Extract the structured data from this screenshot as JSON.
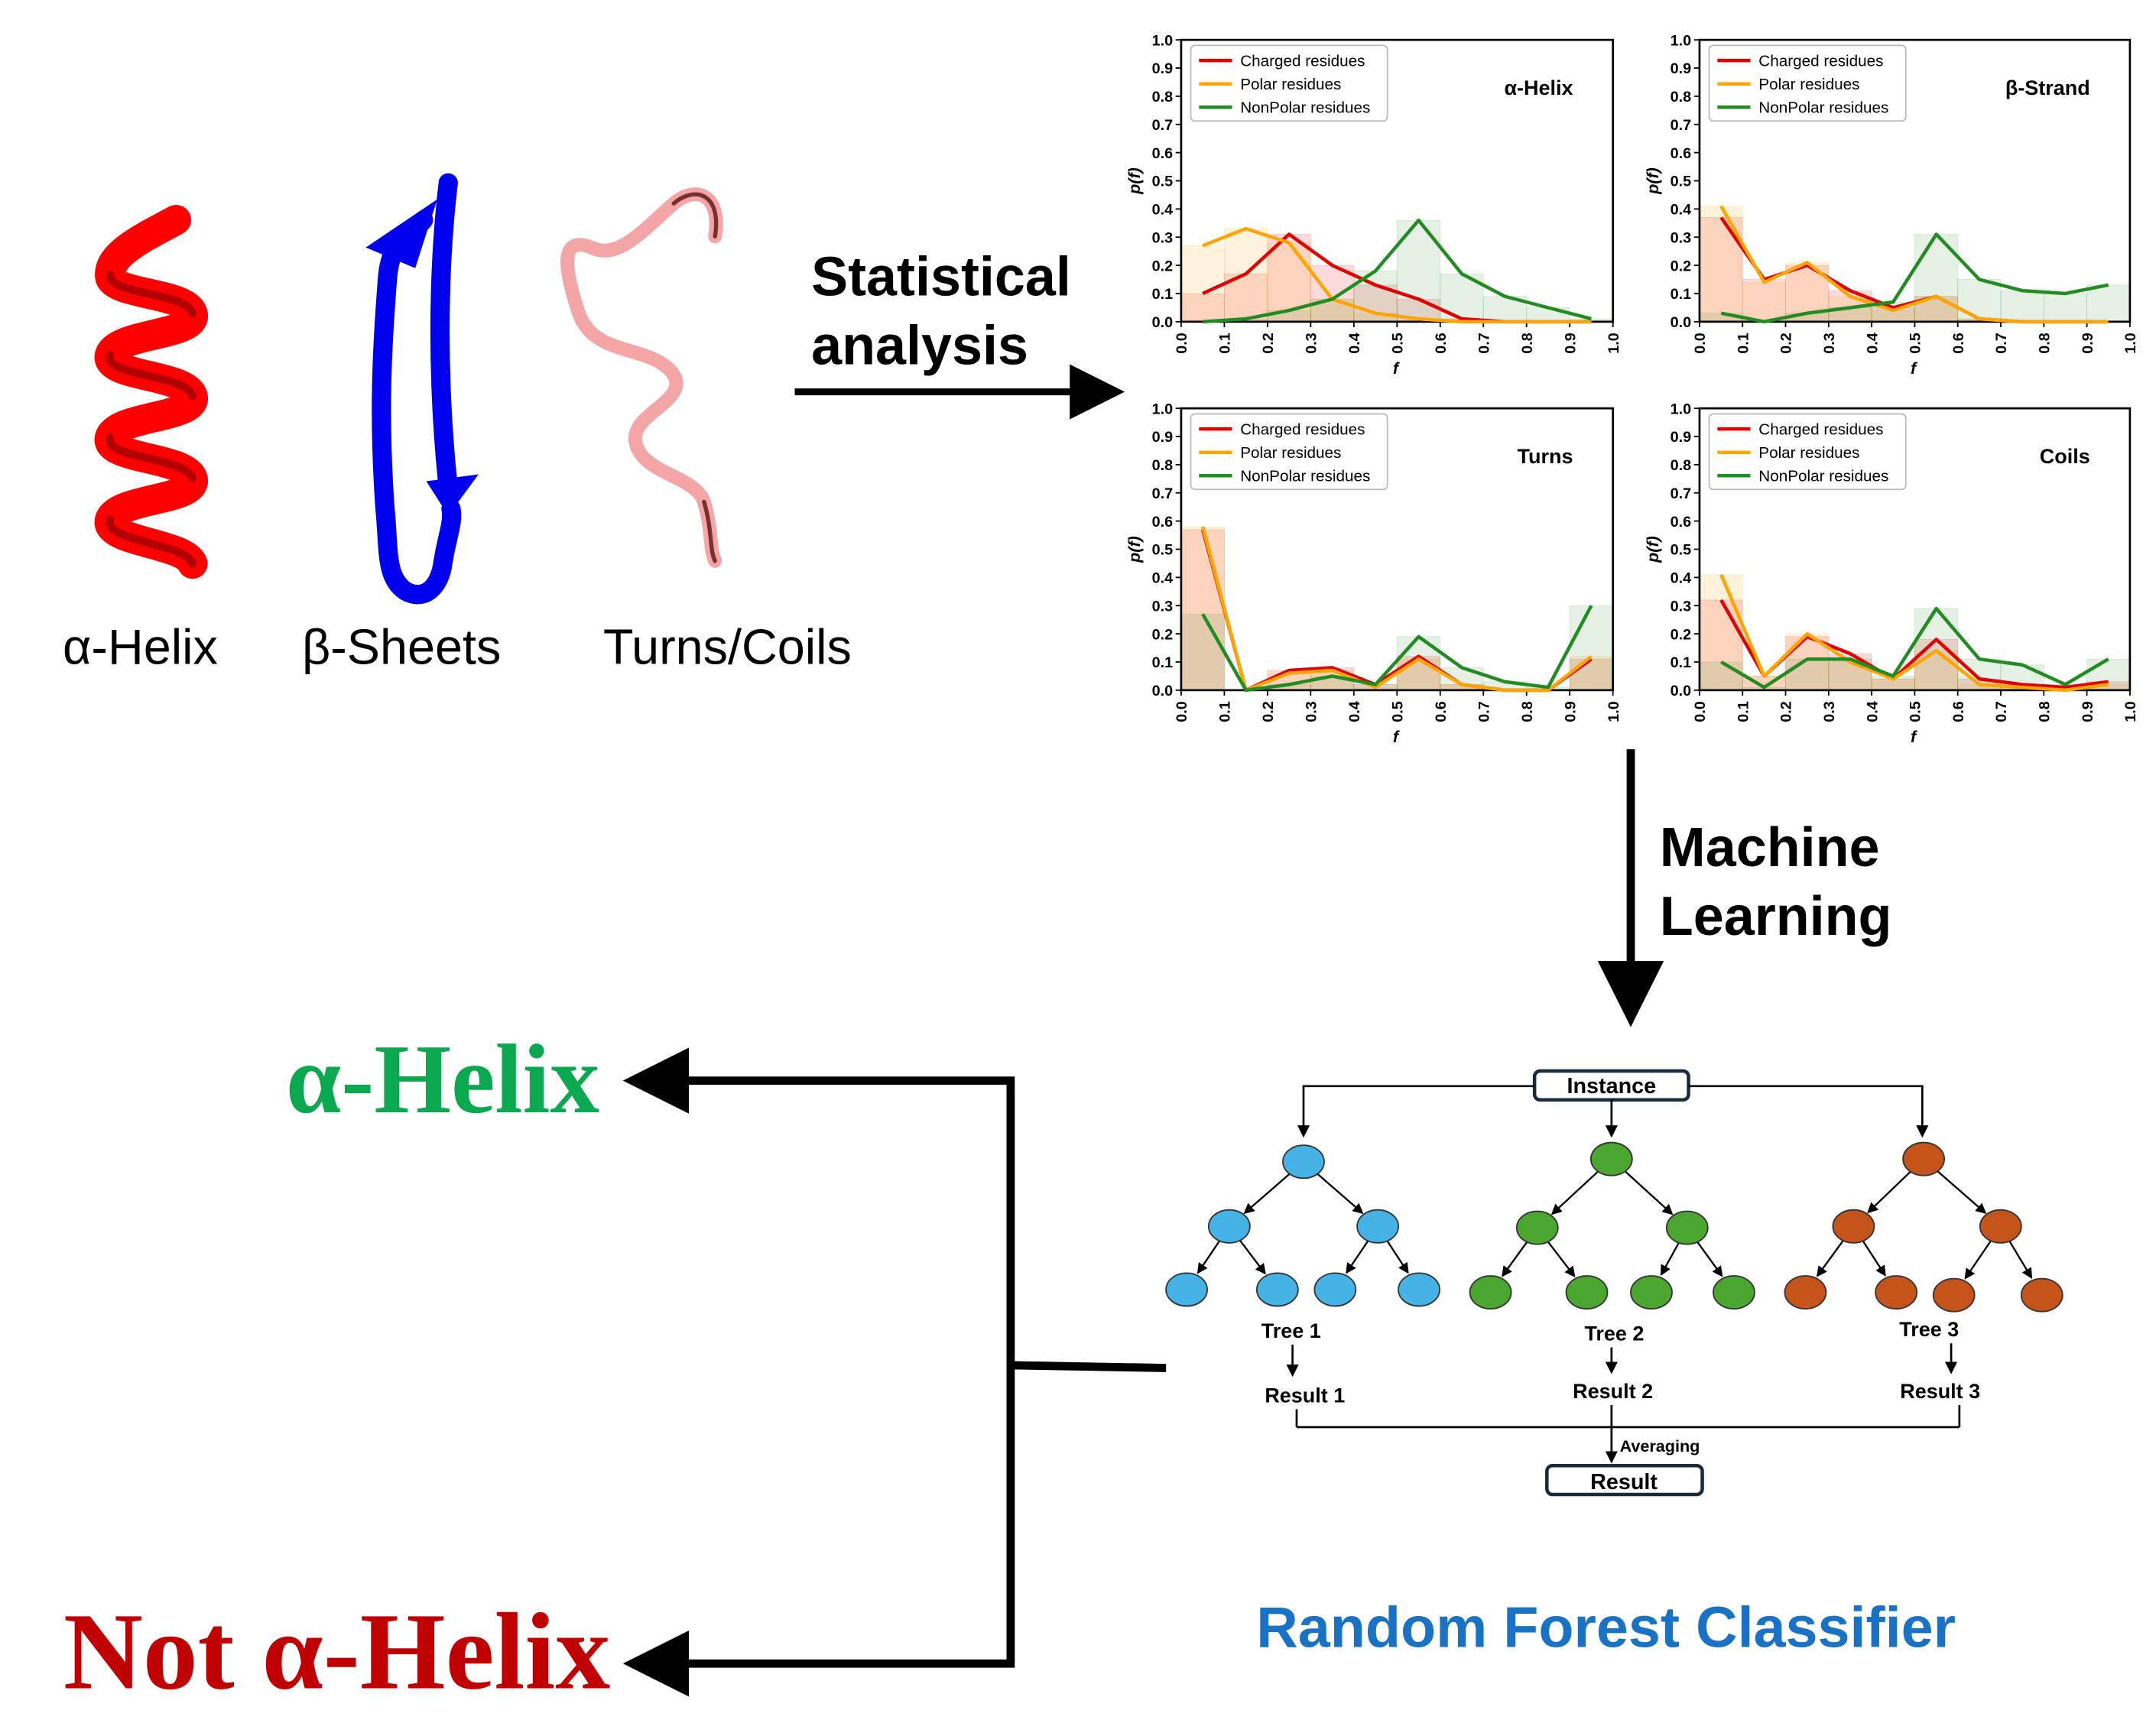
{
  "structures": {
    "helix_label": "α-Helix",
    "sheet_label": "β-Sheets",
    "coil_label": "Turns/Coils",
    "colors": {
      "helix": "#ff0000",
      "sheet": "#0000ee",
      "coil": "#f4a6a6"
    }
  },
  "arrows": {
    "stat_line1": "Statistical",
    "stat_line2": "analysis",
    "ml_line1": "Machine",
    "ml_line2": "Learning"
  },
  "outputs": {
    "alpha": "α-Helix",
    "not_alpha": "Not α-Helix",
    "alpha_color": "#0aa84f",
    "not_alpha_color": "#c00000"
  },
  "forest": {
    "instance": "Instance",
    "trees": [
      "Tree 1",
      "Tree 2",
      "Tree 3"
    ],
    "results": [
      "Result 1",
      "Result 2",
      "Result 3"
    ],
    "averaging": "Averaging",
    "final": "Result",
    "caption": "Random Forest Classifier",
    "caption_color": "#1a72c4",
    "tree_colors": [
      "#45b3e6",
      "#4aa62f",
      "#c5541a"
    ]
  },
  "legend": [
    "Charged residues",
    "Polar residues",
    "NonPolar residues"
  ],
  "series_colors": [
    "#e00000",
    "#ffa500",
    "#228b22"
  ],
  "chart_data": [
    {
      "type": "line",
      "title": "α-Helix",
      "xlabel": "f",
      "ylabel": "p(f)",
      "xlim": [
        0,
        1
      ],
      "ylim": [
        0,
        1
      ],
      "x": [
        0.05,
        0.15,
        0.25,
        0.35,
        0.45,
        0.55,
        0.65,
        0.75,
        0.85,
        0.95
      ],
      "series": [
        {
          "name": "Charged residues",
          "values": [
            0.1,
            0.17,
            0.31,
            0.2,
            0.13,
            0.08,
            0.01,
            0.0,
            0.0,
            0.0
          ]
        },
        {
          "name": "Polar residues",
          "values": [
            0.27,
            0.33,
            0.28,
            0.08,
            0.03,
            0.01,
            0.0,
            0.0,
            0.0,
            0.0
          ]
        },
        {
          "name": "NonPolar residues",
          "values": [
            0.0,
            0.01,
            0.04,
            0.08,
            0.18,
            0.36,
            0.17,
            0.09,
            0.05,
            0.01
          ]
        }
      ]
    },
    {
      "type": "line",
      "title": "β-Strand",
      "xlabel": "f",
      "ylabel": "p(f)",
      "xlim": [
        0,
        1
      ],
      "ylim": [
        0,
        1
      ],
      "x": [
        0.05,
        0.15,
        0.25,
        0.35,
        0.45,
        0.55,
        0.65,
        0.75,
        0.85,
        0.95
      ],
      "series": [
        {
          "name": "Charged residues",
          "values": [
            0.37,
            0.15,
            0.2,
            0.11,
            0.05,
            0.09,
            0.01,
            0.0,
            0.0,
            0.0
          ]
        },
        {
          "name": "Polar residues",
          "values": [
            0.41,
            0.14,
            0.21,
            0.09,
            0.04,
            0.09,
            0.01,
            0.0,
            0.0,
            0.0
          ]
        },
        {
          "name": "NonPolar residues",
          "values": [
            0.03,
            0.0,
            0.03,
            0.05,
            0.07,
            0.31,
            0.15,
            0.11,
            0.1,
            0.13
          ]
        }
      ]
    },
    {
      "type": "line",
      "title": "Turns",
      "xlabel": "f",
      "ylabel": "p(f)",
      "xlim": [
        0,
        1
      ],
      "ylim": [
        0,
        1
      ],
      "x": [
        0.05,
        0.15,
        0.25,
        0.35,
        0.45,
        0.55,
        0.65,
        0.75,
        0.85,
        0.95
      ],
      "series": [
        {
          "name": "Charged residues",
          "values": [
            0.57,
            0.0,
            0.07,
            0.08,
            0.02,
            0.12,
            0.02,
            0.0,
            0.0,
            0.11
          ]
        },
        {
          "name": "Polar residues",
          "values": [
            0.58,
            0.0,
            0.06,
            0.07,
            0.01,
            0.11,
            0.02,
            0.0,
            0.0,
            0.12
          ]
        },
        {
          "name": "NonPolar residues",
          "values": [
            0.27,
            0.0,
            0.02,
            0.05,
            0.02,
            0.19,
            0.08,
            0.03,
            0.01,
            0.3
          ]
        }
      ]
    },
    {
      "type": "line",
      "title": "Coils",
      "xlabel": "f",
      "ylabel": "p(f)",
      "xlim": [
        0,
        1
      ],
      "ylim": [
        0,
        1
      ],
      "x": [
        0.05,
        0.15,
        0.25,
        0.35,
        0.45,
        0.55,
        0.65,
        0.75,
        0.85,
        0.95
      ],
      "series": [
        {
          "name": "Charged residues",
          "values": [
            0.32,
            0.05,
            0.19,
            0.13,
            0.04,
            0.18,
            0.04,
            0.02,
            0.01,
            0.03
          ]
        },
        {
          "name": "Polar residues",
          "values": [
            0.41,
            0.05,
            0.2,
            0.1,
            0.04,
            0.14,
            0.02,
            0.01,
            0.0,
            0.02
          ]
        },
        {
          "name": "NonPolar residues",
          "values": [
            0.1,
            0.01,
            0.11,
            0.11,
            0.05,
            0.29,
            0.11,
            0.09,
            0.02,
            0.11
          ]
        }
      ]
    }
  ]
}
